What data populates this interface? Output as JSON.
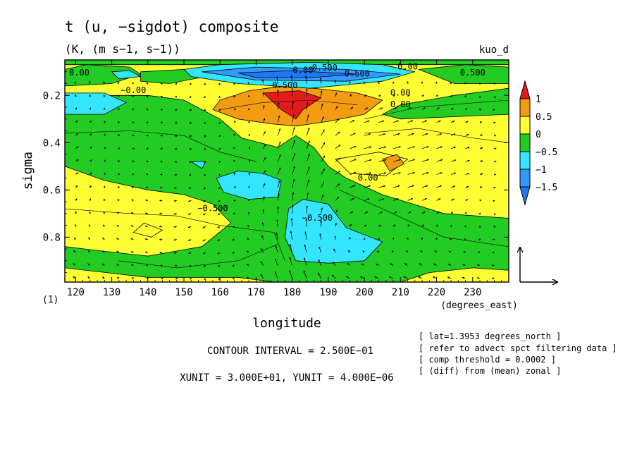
{
  "chart_data": {
    "type": "heatmap",
    "title": "t (u, −sigdot) composite",
    "subtitle": "(K, (m s−1, s−1))",
    "run_label": "kuo_d",
    "xlabel": "longitude",
    "x_units_label": "(degrees_east)",
    "ylabel": "sigma",
    "y_extra_label": "(1)",
    "xlim": [
      117,
      240
    ],
    "ylim": [
      0.99,
      0.05
    ],
    "xticks": [
      "120",
      "130",
      "140",
      "150",
      "160",
      "170",
      "180",
      "190",
      "200",
      "210",
      "220",
      "230"
    ],
    "yticks": [
      "0.2",
      "0.4",
      "0.6",
      "0.8"
    ],
    "colorbar": {
      "levels": [
        "1",
        "0.5",
        "0",
        "−0.5",
        "−1",
        "−1.5"
      ],
      "colors": [
        "#e41a1c",
        "#f39c12",
        "#ffff33",
        "#22cc22",
        "#33e5ff",
        "#3399ff",
        "#1f78f2"
      ]
    },
    "contour_labels": [
      "0.00",
      "0.00",
      "0.500",
      "−0.00",
      "0.500",
      "0.00",
      "0.500",
      "0.00",
      "0.00",
      "−0.500",
      "−0.500",
      "0.00",
      "0.500"
    ],
    "contour_interval_text": "CONTOUR INTERVAL = 2.500E−01",
    "unit_text": "XUNIT = 3.000E+01, YUNIT = 4.000E−06",
    "notes": [
      "[ lat=1.3953 degrees_north ]",
      "[ refer to advect spct filtering data ]",
      "[ comp threshold = 0.0002 ]",
      "[ (diff) from (mean) zonal ]"
    ],
    "grid": false
  }
}
